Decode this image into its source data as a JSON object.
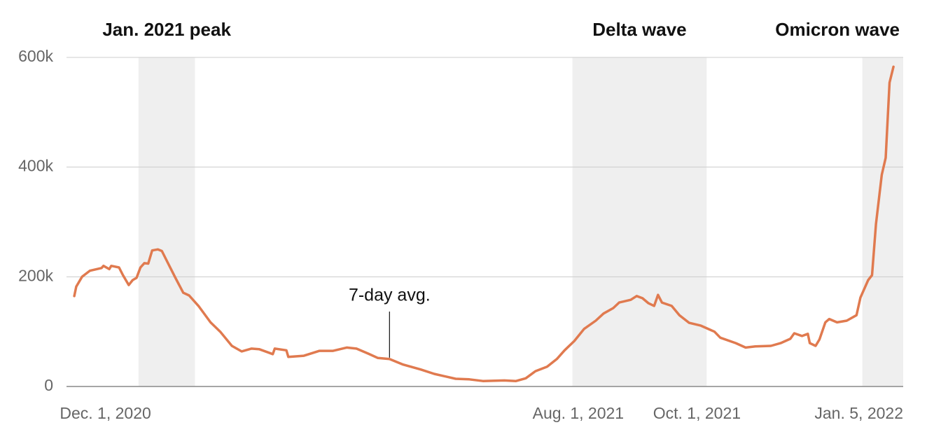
{
  "chart_data": {
    "type": "line",
    "color": "#e07a4f",
    "x": [
      "2020-11-15",
      "2020-11-16",
      "2020-11-19",
      "2020-11-23",
      "2020-11-29",
      "2020-11-30",
      "2020-12-03",
      "2020-12-04",
      "2020-12-08",
      "2020-12-10",
      "2020-12-13",
      "2020-12-15",
      "2020-12-17",
      "2020-12-19",
      "2020-12-21",
      "2020-12-23",
      "2020-12-25",
      "2020-12-28",
      "2020-12-30",
      "2021-01-02",
      "2021-01-06",
      "2021-01-10",
      "2021-01-13",
      "2021-01-18",
      "2021-01-24",
      "2021-01-29",
      "2021-02-04",
      "2021-02-09",
      "2021-02-14",
      "2021-02-18",
      "2021-02-25",
      "2021-02-26",
      "2021-03-04",
      "2021-03-05",
      "2021-03-13",
      "2021-03-21",
      "2021-03-28",
      "2021-04-04",
      "2021-04-09",
      "2021-04-15",
      "2021-04-20",
      "2021-04-26",
      "2021-05-03",
      "2021-05-12",
      "2021-05-19",
      "2021-05-30",
      "2021-06-06",
      "2021-06-13",
      "2021-06-24",
      "2021-06-30",
      "2021-07-05",
      "2021-07-10",
      "2021-07-16",
      "2021-07-21",
      "2021-07-25",
      "2021-07-30",
      "2021-08-04",
      "2021-08-10",
      "2021-08-14",
      "2021-08-19",
      "2021-08-22",
      "2021-08-28",
      "2021-08-31",
      "2021-09-03",
      "2021-09-06",
      "2021-09-09",
      "2021-09-11",
      "2021-09-13",
      "2021-09-18",
      "2021-09-22",
      "2021-09-27",
      "2021-10-03",
      "2021-10-10",
      "2021-10-13",
      "2021-10-21",
      "2021-10-26",
      "2021-10-31",
      "2021-11-08",
      "2021-11-13",
      "2021-11-18",
      "2021-11-20",
      "2021-11-24",
      "2021-11-27",
      "2021-11-28",
      "2021-12-01",
      "2021-12-03",
      "2021-12-06",
      "2021-12-08",
      "2021-12-12",
      "2021-12-17",
      "2021-12-22",
      "2021-12-24",
      "2021-12-28",
      "2021-12-30",
      "2022-01-01",
      "2022-01-04",
      "2022-01-06",
      "2022-01-08",
      "2022-01-10"
    ],
    "values": [
      165000,
      182000,
      200000,
      211000,
      216000,
      220000,
      214000,
      220000,
      217000,
      203000,
      185000,
      194000,
      198000,
      217000,
      225000,
      224000,
      248000,
      250000,
      247000,
      226000,
      198000,
      171000,
      166000,
      146000,
      117000,
      100000,
      74000,
      64000,
      69000,
      68000,
      59000,
      69000,
      66000,
      54000,
      56000,
      65000,
      65000,
      71000,
      69000,
      60000,
      52000,
      50000,
      40000,
      31000,
      23000,
      14000,
      13000,
      10000,
      11000,
      10000,
      15000,
      28000,
      36000,
      50000,
      66000,
      83000,
      105000,
      120000,
      133000,
      143000,
      153000,
      158000,
      165000,
      161000,
      152000,
      147000,
      167000,
      153000,
      147000,
      130000,
      116000,
      111000,
      100000,
      89000,
      79000,
      71000,
      73000,
      74000,
      79000,
      87000,
      97000,
      92000,
      96000,
      79000,
      74000,
      86000,
      117000,
      123000,
      117000,
      120000,
      130000,
      162000,
      194000,
      203000,
      296000,
      386000,
      417000,
      554000,
      583000
    ],
    "xlim": [
      "2020-11-11",
      "2022-01-15"
    ],
    "xticks": [
      {
        "value": "2020-12-01",
        "label": "Dec. 1, 2020"
      },
      {
        "value": "2021-08-01",
        "label": "Aug. 1, 2021"
      },
      {
        "value": "2021-10-01",
        "label": "Oct. 1, 2021"
      },
      {
        "value": "2022-01-05",
        "label": "Jan. 5, 2022"
      }
    ],
    "ylim": [
      0,
      600000
    ],
    "yticks": [
      0,
      {
        "value": 200000,
        "label": "200k"
      },
      {
        "value": 400000,
        "label": "400k"
      },
      {
        "value": 600000,
        "label": "600k"
      }
    ],
    "grid": true,
    "bands": [
      {
        "label": "Jan. 2021 peak",
        "start": "2020-12-18",
        "end": "2021-01-16"
      },
      {
        "label": "Delta wave",
        "start": "2021-07-29",
        "end": "2021-10-06"
      },
      {
        "label": "Omicron wave",
        "start": "2021-12-25",
        "end": "2022-01-15"
      }
    ],
    "annotation": {
      "text": "7-day avg.",
      "x": "2021-04-26"
    }
  }
}
